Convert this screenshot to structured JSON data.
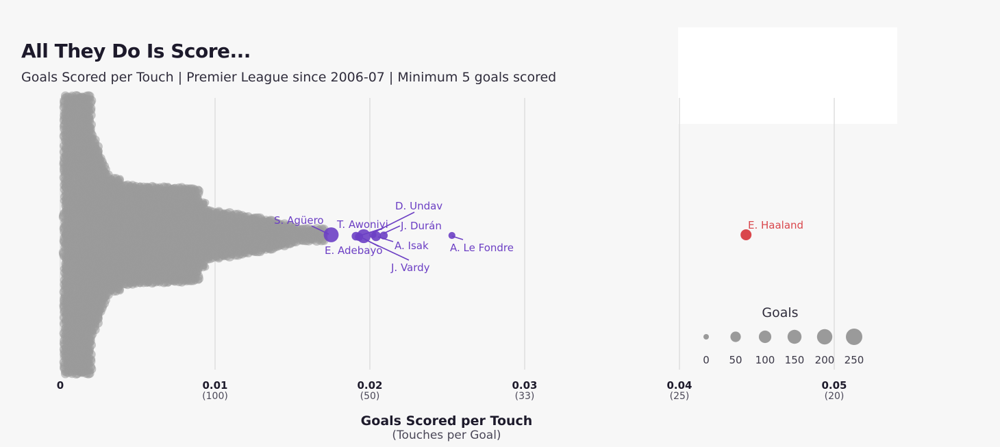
{
  "header": {
    "title": "All They Do Is Score...",
    "subtitle": "Goals Scored per Touch | Premier League since 2006-07 | Minimum 5 goals scored"
  },
  "colors": {
    "background": "#f7f7f7",
    "grey_points": "#9a9a9a",
    "highlight": "#6c3fc4",
    "haaland": "#d9474c",
    "gridline": "#dedede"
  },
  "chart_data": {
    "type": "scatter",
    "style": "beeswarm",
    "xlabel": "Goals Scored per Touch",
    "xlabel_sub": "(Touches per Goal)",
    "xlim": [
      0,
      0.05
    ],
    "x_ticks": [
      {
        "value": 0,
        "label": "0",
        "sub": ""
      },
      {
        "value": 0.01,
        "label": "0.01",
        "sub": "(100)"
      },
      {
        "value": 0.02,
        "label": "0.02",
        "sub": "(50)"
      },
      {
        "value": 0.03,
        "label": "0.03",
        "sub": "(33)"
      },
      {
        "value": 0.04,
        "label": "0.04",
        "sub": "(25)"
      },
      {
        "value": 0.05,
        "label": "0.05",
        "sub": "(20)"
      }
    ],
    "grid": true,
    "highlighted_players": [
      {
        "name": "S. Agüero",
        "x": 0.0175,
        "goals": 184
      },
      {
        "name": "T. Awoniyi",
        "x": 0.0191,
        "goals": 20
      },
      {
        "name": "E. Adebayo",
        "x": 0.0193,
        "goals": 16
      },
      {
        "name": "J. Vardy",
        "x": 0.0196,
        "goals": 143
      },
      {
        "name": "D. Undav",
        "x": 0.0202,
        "goals": 5
      },
      {
        "name": "A. Isak",
        "x": 0.0204,
        "goals": 41
      },
      {
        "name": "J. Durán",
        "x": 0.0209,
        "goals": 12
      },
      {
        "name": "A. Le Fondre",
        "x": 0.0253,
        "goals": 5
      },
      {
        "name": "E. Haaland",
        "x": 0.0443,
        "goals": 63
      }
    ],
    "grey_distribution": {
      "description_free": true,
      "x_range": [
        0.0002,
        0.0173
      ]
    },
    "legend": {
      "title": "Goals",
      "position": "bottom-right",
      "values": [
        0,
        50,
        100,
        150,
        200,
        250
      ],
      "labels": [
        "0",
        "50",
        "100",
        "150",
        "200",
        "250"
      ]
    }
  }
}
